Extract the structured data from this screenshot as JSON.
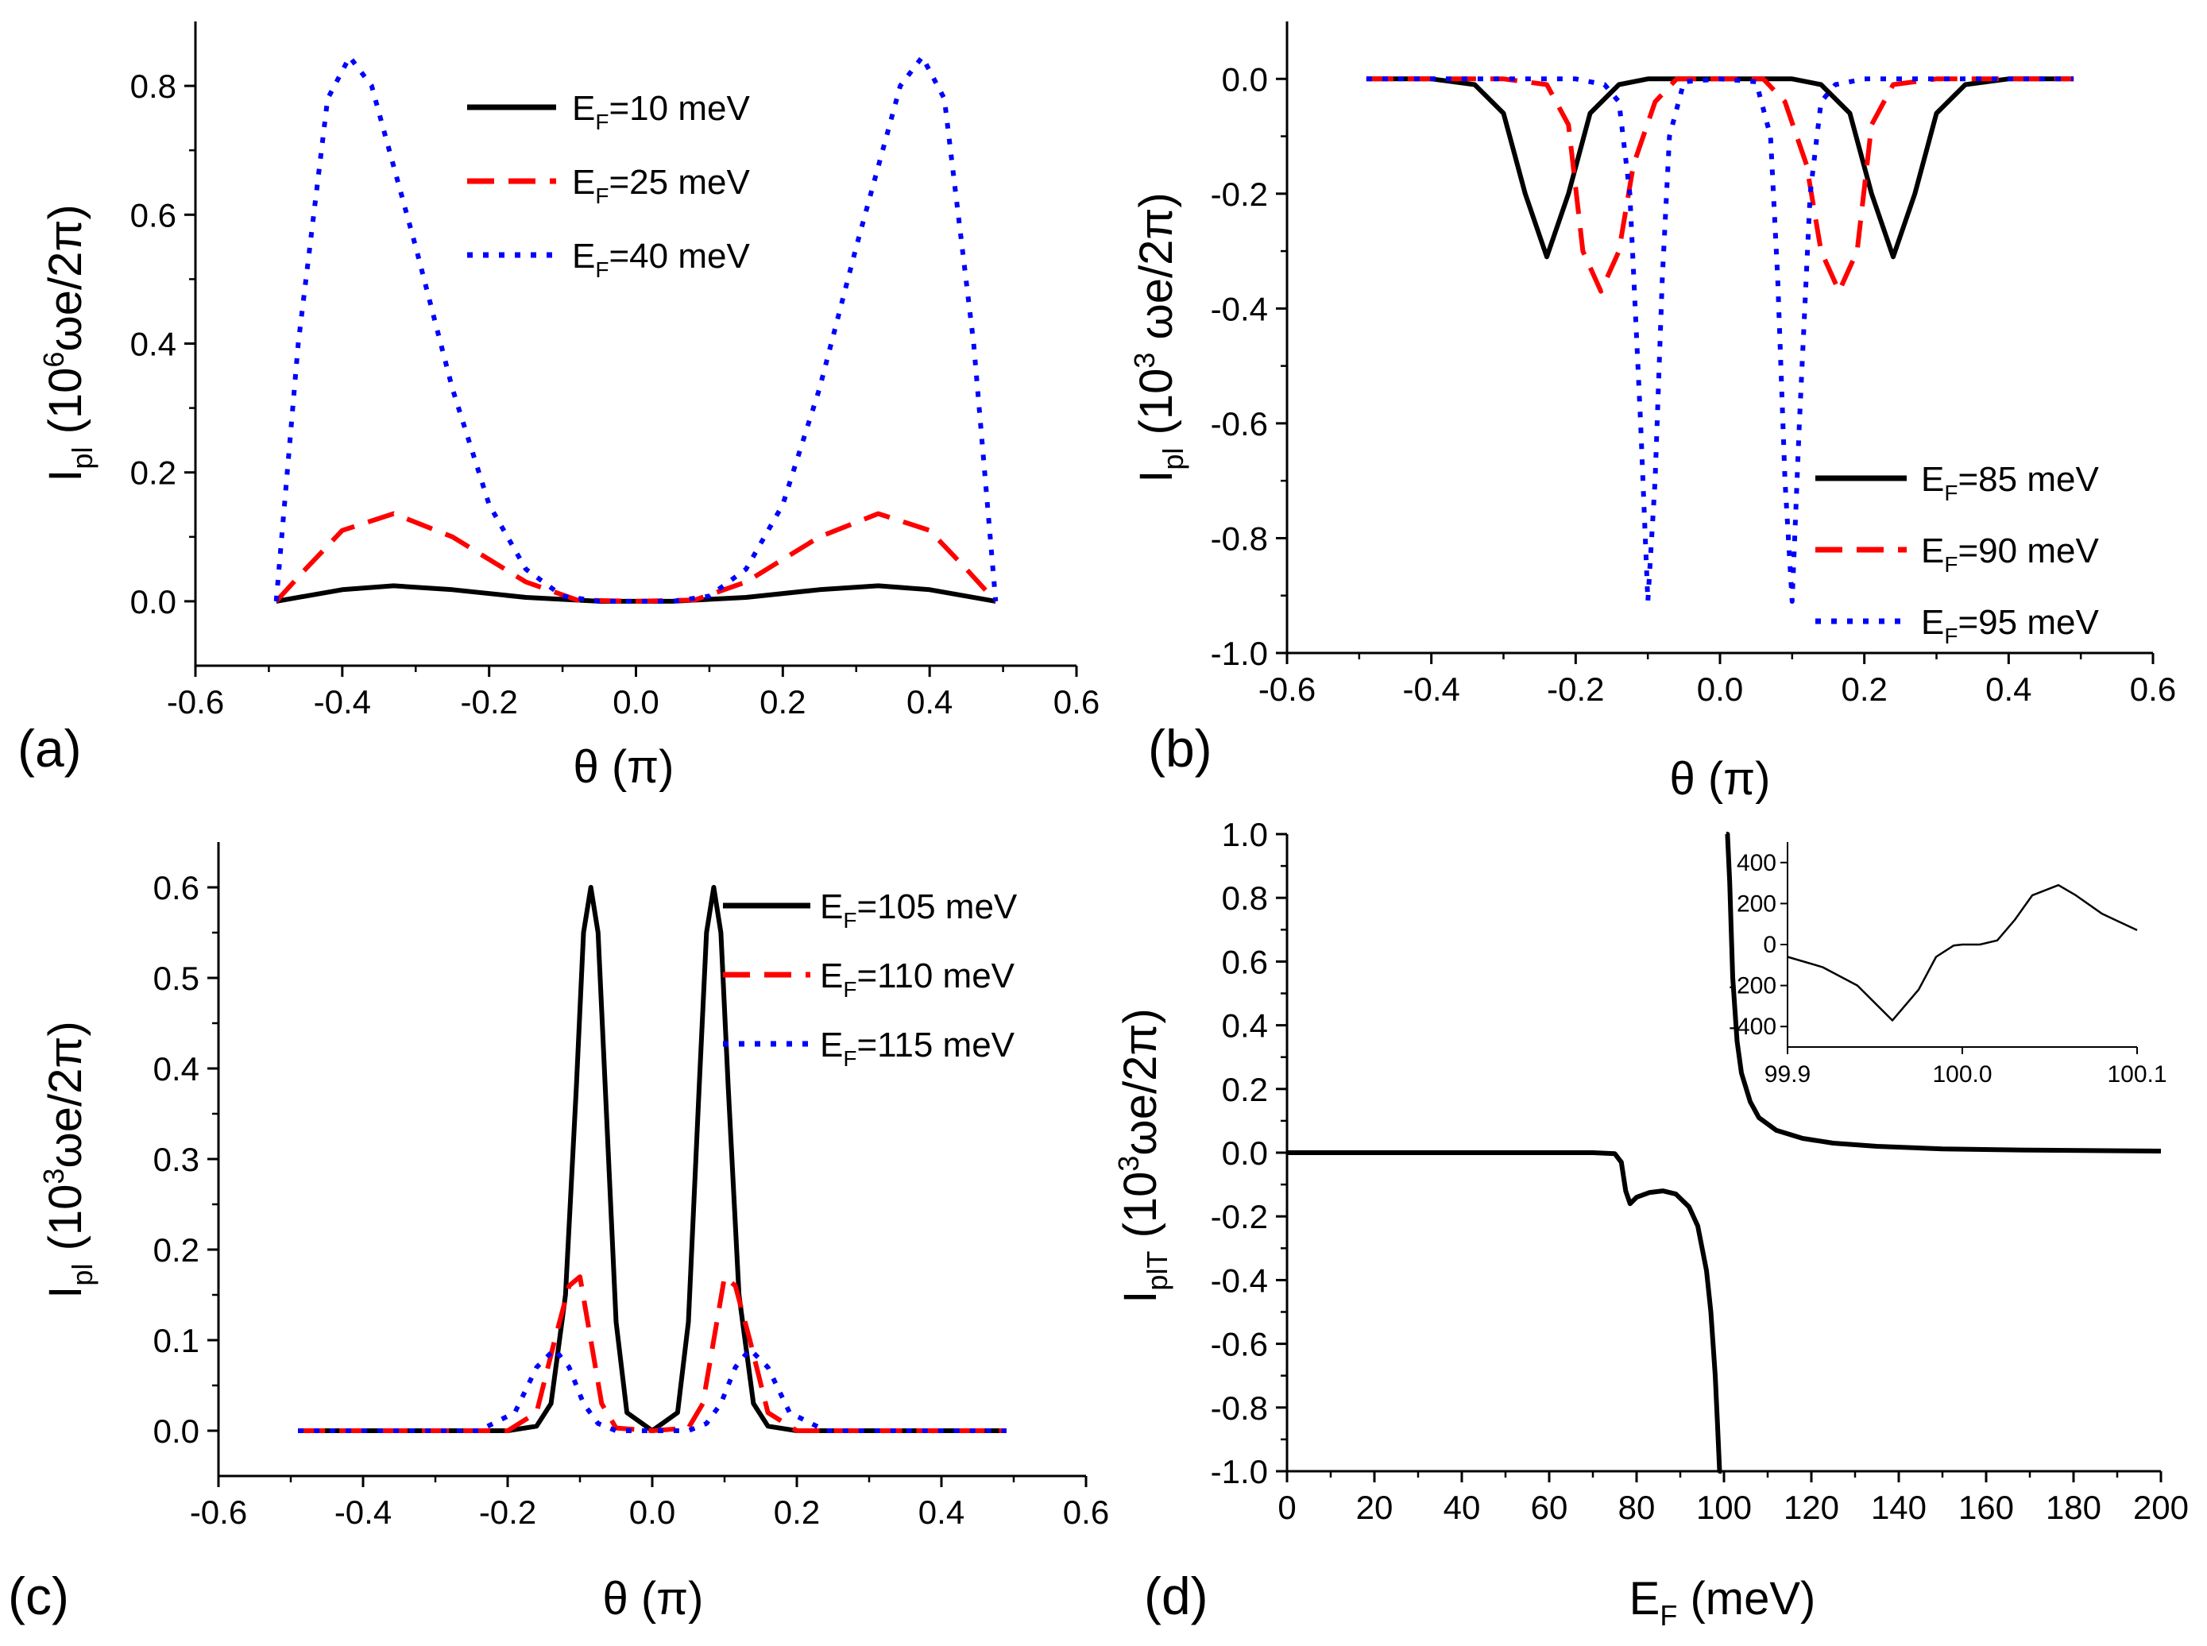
{
  "chart_data": [
    {
      "type": "line",
      "panel_label": "(a)",
      "xlabel": "θ (π)",
      "ylabel": {
        "main": "I",
        "sub": "pl",
        "rest1": " (10",
        "sup": "6",
        "rest2": "ωe/2π)"
      },
      "xlim": [
        -0.6,
        0.6
      ],
      "ylim": [
        -0.1,
        0.9
      ],
      "xticks": [
        "-0.6",
        "-0.4",
        "-0.2",
        "0.0",
        "0.2",
        "0.4",
        "0.6"
      ],
      "yticks": [
        "0.0",
        "0.2",
        "0.4",
        "0.6",
        "0.8"
      ],
      "legend": "top-center",
      "series": [
        {
          "name": "E_F=10 meV",
          "label_main": "E",
          "label_sub": "F",
          "label_rest": "=10 meV",
          "color": "#000000",
          "style": "solid",
          "x": [
            -0.49,
            -0.45,
            -0.4,
            -0.33,
            -0.25,
            -0.15,
            -0.05,
            0.0,
            0.05,
            0.15,
            0.25,
            0.33,
            0.4,
            0.45,
            0.49
          ],
          "y": [
            0.0,
            0.008,
            0.018,
            0.024,
            0.018,
            0.006,
            0.0,
            0.0,
            0.0,
            0.006,
            0.018,
            0.024,
            0.018,
            0.008,
            0.0
          ]
        },
        {
          "name": "E_F=25 meV",
          "label_main": "E",
          "label_sub": "F",
          "label_rest": "=25 meV",
          "color": "#ff0000",
          "style": "dashed",
          "x": [
            -0.49,
            -0.45,
            -0.4,
            -0.33,
            -0.25,
            -0.15,
            -0.08,
            0.0,
            0.08,
            0.15,
            0.25,
            0.33,
            0.4,
            0.45,
            0.49
          ],
          "y": [
            0.0,
            0.05,
            0.11,
            0.136,
            0.1,
            0.03,
            0.002,
            0.0,
            0.002,
            0.03,
            0.1,
            0.136,
            0.11,
            0.05,
            0.0
          ]
        },
        {
          "name": "E_F=40 meV",
          "label_main": "E",
          "label_sub": "F",
          "label_rest": "=40 meV",
          "color": "#0000ff",
          "style": "dotted",
          "x": [
            -0.49,
            -0.46,
            -0.42,
            -0.39,
            -0.36,
            -0.3,
            -0.25,
            -0.2,
            -0.15,
            -0.1,
            -0.05,
            0.0,
            0.05,
            0.1,
            0.15,
            0.2,
            0.25,
            0.3,
            0.36,
            0.39,
            0.42,
            0.46,
            0.49
          ],
          "y": [
            0.0,
            0.4,
            0.78,
            0.845,
            0.8,
            0.55,
            0.33,
            0.15,
            0.05,
            0.008,
            0.0,
            0.0,
            0.0,
            0.008,
            0.05,
            0.15,
            0.33,
            0.55,
            0.8,
            0.845,
            0.78,
            0.4,
            0.0
          ]
        }
      ]
    },
    {
      "type": "line",
      "panel_label": "(b)",
      "xlabel": "θ (π)",
      "ylabel": {
        "main": "I",
        "sub": "pl",
        "rest1": " (10",
        "sup": "3",
        "rest2": " ωe/2π)"
      },
      "xlim": [
        -0.6,
        0.6
      ],
      "ylim": [
        -1.0,
        0.1
      ],
      "xticks": [
        "-0.6",
        "-0.4",
        "-0.2",
        "0.0",
        "0.2",
        "0.4",
        "0.6"
      ],
      "yticks": [
        "0.0",
        "-0.2",
        "-0.4",
        "-0.6",
        "-0.8",
        "-1.0"
      ],
      "legend": "bottom-right",
      "series": [
        {
          "name": "E_F=85 meV",
          "label_main": "E",
          "label_sub": "F",
          "label_rest": "=85 meV",
          "color": "#000000",
          "style": "solid",
          "x": [
            -0.49,
            -0.4,
            -0.34,
            -0.3,
            -0.27,
            -0.24,
            -0.21,
            -0.18,
            -0.14,
            -0.1,
            0.0,
            0.1,
            0.14,
            0.18,
            0.21,
            0.24,
            0.27,
            0.3,
            0.34,
            0.4,
            0.49
          ],
          "y": [
            0.0,
            0.0,
            -0.01,
            -0.06,
            -0.2,
            -0.31,
            -0.2,
            -0.06,
            -0.01,
            0.0,
            0.0,
            0.0,
            -0.01,
            -0.06,
            -0.2,
            -0.31,
            -0.2,
            -0.06,
            -0.01,
            0.0,
            0.0
          ]
        },
        {
          "name": "E_F=90 meV",
          "label_main": "E",
          "label_sub": "F",
          "label_rest": "=90 meV",
          "color": "#ff0000",
          "style": "dashed",
          "x": [
            -0.49,
            -0.3,
            -0.24,
            -0.21,
            -0.19,
            -0.165,
            -0.14,
            -0.12,
            -0.09,
            -0.06,
            0.0,
            0.06,
            0.09,
            0.12,
            0.14,
            0.165,
            0.19,
            0.21,
            0.24,
            0.3,
            0.49
          ],
          "y": [
            0.0,
            0.0,
            -0.01,
            -0.08,
            -0.3,
            -0.37,
            -0.3,
            -0.15,
            -0.04,
            0.0,
            0.0,
            0.0,
            -0.04,
            -0.15,
            -0.3,
            -0.37,
            -0.3,
            -0.08,
            -0.01,
            0.0,
            0.0
          ]
        },
        {
          "name": "E_F=95 meV",
          "label_main": "E",
          "label_sub": "F",
          "label_rest": "=95 meV",
          "color": "#0000ff",
          "style": "dotted",
          "x": [
            -0.49,
            -0.2,
            -0.16,
            -0.14,
            -0.125,
            -0.11,
            -0.1,
            -0.09,
            -0.08,
            -0.07,
            -0.05,
            0.0,
            0.05,
            0.07,
            0.08,
            0.09,
            0.1,
            0.11,
            0.125,
            0.14,
            0.16,
            0.2,
            0.49
          ],
          "y": [
            0.0,
            0.0,
            -0.01,
            -0.04,
            -0.2,
            -0.6,
            -0.91,
            -0.7,
            -0.35,
            -0.1,
            -0.005,
            0.0,
            -0.005,
            -0.1,
            -0.35,
            -0.7,
            -0.91,
            -0.6,
            -0.2,
            -0.04,
            -0.01,
            0.0,
            0.0
          ]
        }
      ]
    },
    {
      "type": "line",
      "panel_label": "(c)",
      "xlabel": "θ (π)",
      "ylabel": {
        "main": "I",
        "sub": "pl",
        "rest1": " (10",
        "sup": "3",
        "rest2": "ωe/2π)"
      },
      "xlim": [
        -0.6,
        0.6
      ],
      "ylim": [
        -0.05,
        0.65
      ],
      "xticks": [
        "-0.6",
        "-0.4",
        "-0.2",
        "0.0",
        "0.2",
        "0.4",
        "0.6"
      ],
      "yticks": [
        "0.0",
        "0.1",
        "0.2",
        "0.3",
        "0.4",
        "0.5",
        "0.6"
      ],
      "legend": "top-right",
      "series": [
        {
          "name": "E_F=105 meV",
          "label_main": "E",
          "label_sub": "F",
          "label_rest": "=105 meV",
          "color": "#000000",
          "style": "solid",
          "x": [
            -0.49,
            -0.2,
            -0.16,
            -0.14,
            -0.12,
            -0.105,
            -0.095,
            -0.085,
            -0.075,
            -0.065,
            -0.05,
            -0.035,
            0.0,
            0.035,
            0.05,
            0.065,
            0.075,
            0.085,
            0.095,
            0.105,
            0.12,
            0.14,
            0.16,
            0.2,
            0.49
          ],
          "y": [
            0.0,
            0.0,
            0.005,
            0.03,
            0.15,
            0.38,
            0.55,
            0.6,
            0.55,
            0.38,
            0.12,
            0.02,
            0.0,
            0.02,
            0.12,
            0.38,
            0.55,
            0.6,
            0.55,
            0.38,
            0.15,
            0.03,
            0.005,
            0.0,
            0.0
          ]
        },
        {
          "name": "E_F=110 meV",
          "label_main": "E",
          "label_sub": "F",
          "label_rest": "=110 meV",
          "color": "#ff0000",
          "style": "dashed",
          "x": [
            -0.49,
            -0.2,
            -0.16,
            -0.135,
            -0.115,
            -0.1,
            -0.085,
            -0.07,
            -0.05,
            0.0,
            0.05,
            0.07,
            0.085,
            0.1,
            0.115,
            0.135,
            0.16,
            0.2,
            0.49
          ],
          "y": [
            0.0,
            0.0,
            0.02,
            0.1,
            0.16,
            0.17,
            0.1,
            0.03,
            0.003,
            0.0,
            0.003,
            0.03,
            0.1,
            0.17,
            0.16,
            0.1,
            0.02,
            0.0,
            0.0
          ]
        },
        {
          "name": "E_F=115 meV",
          "label_main": "E",
          "label_sub": "F",
          "label_rest": "=115 meV",
          "color": "#0000ff",
          "style": "dotted",
          "x": [
            -0.49,
            -0.24,
            -0.19,
            -0.16,
            -0.135,
            -0.115,
            -0.095,
            -0.075,
            -0.05,
            0.0,
            0.05,
            0.075,
            0.095,
            0.115,
            0.135,
            0.16,
            0.19,
            0.24,
            0.49
          ],
          "y": [
            0.0,
            0.0,
            0.02,
            0.07,
            0.09,
            0.07,
            0.03,
            0.008,
            0.0,
            0.0,
            0.0,
            0.008,
            0.03,
            0.07,
            0.09,
            0.07,
            0.02,
            0.0,
            0.0
          ]
        }
      ]
    },
    {
      "type": "line",
      "panel_label": "(d)",
      "xlabel": {
        "main": "E",
        "sub": "F",
        "rest": " (meV)"
      },
      "ylabel": {
        "main": "I",
        "sub": "plT",
        "rest1": " (10",
        "sup": "3",
        "rest2": "ωe/2π)"
      },
      "xlim": [
        0,
        200
      ],
      "ylim": [
        -1.0,
        1.0
      ],
      "xticks": [
        "0",
        "20",
        "40",
        "60",
        "80",
        "100",
        "120",
        "140",
        "160",
        "180",
        "200"
      ],
      "yticks": [
        "1.0",
        "0.8",
        "0.6",
        "0.4",
        "0.2",
        "0.0",
        "-0.2",
        "-0.4",
        "-0.6",
        "-0.8",
        "-1.0"
      ],
      "series": [
        {
          "name": "",
          "color": "#000000",
          "style": "solid",
          "x": [
            0,
            40,
            70,
            75,
            76.5,
            77.5,
            78.5,
            80,
            83,
            86,
            89,
            92,
            94,
            96,
            97,
            98,
            98.5,
            99,
            99.3,
            99.5
          ],
          "y": [
            0.0,
            0.0,
            0.0,
            -0.003,
            -0.03,
            -0.12,
            -0.16,
            -0.14,
            -0.125,
            -0.12,
            -0.13,
            -0.17,
            -0.23,
            -0.37,
            -0.5,
            -0.7,
            -0.85,
            -1.0,
            -1.0,
            -1.0
          ]
        },
        {
          "name": "",
          "color": "#000000",
          "style": "solid",
          "x": [
            100.5,
            100.8,
            101.3,
            102,
            103,
            104,
            106,
            108,
            112,
            118,
            125,
            135,
            150,
            170,
            200
          ],
          "y": [
            1.0,
            1.0,
            0.85,
            0.55,
            0.35,
            0.25,
            0.16,
            0.11,
            0.07,
            0.045,
            0.03,
            0.02,
            0.012,
            0.008,
            0.005
          ]
        }
      ],
      "inset": {
        "xlim": [
          99.9,
          100.1
        ],
        "ylim": [
          -500,
          500
        ],
        "xticks": [
          "99.9",
          "100.0",
          "100.1"
        ],
        "yticks": [
          "400",
          "200",
          "0",
          "-200",
          "-400"
        ],
        "series": [
          {
            "color": "#000000",
            "style": "solid",
            "x": [
              99.9,
              99.92,
              99.94,
              99.96,
              99.975,
              99.985,
              99.995,
              100.0,
              100.01,
              100.02,
              100.03,
              100.04,
              100.055,
              100.065,
              100.08,
              100.1
            ],
            "y": [
              -60,
              -110,
              -200,
              -370,
              -220,
              -60,
              -5,
              0,
              0,
              20,
              120,
              240,
              290,
              240,
              150,
              70
            ]
          }
        ]
      }
    }
  ]
}
